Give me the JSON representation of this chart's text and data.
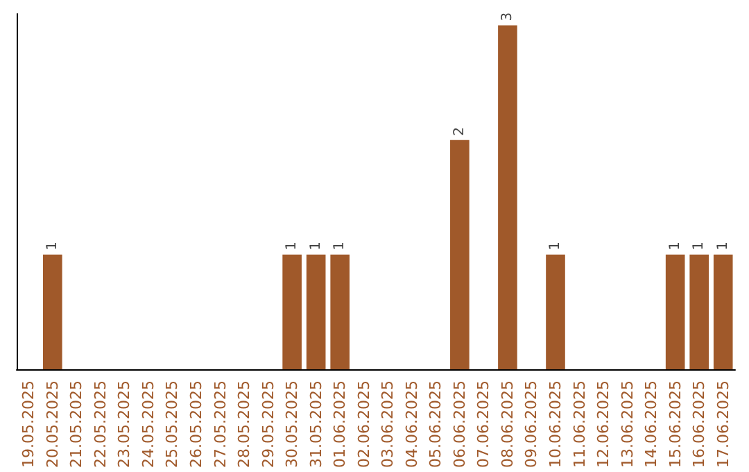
{
  "chart_data": {
    "type": "bar",
    "categories": [
      "19.05.2025",
      "20.05.2025",
      "21.05.2025",
      "22.05.2025",
      "23.05.2025",
      "24.05.2025",
      "25.05.2025",
      "26.05.2025",
      "27.05.2025",
      "28.05.2025",
      "29.05.2025",
      "30.05.2025",
      "31.05.2025",
      "01.06.2025",
      "02.06.2025",
      "03.06.2025",
      "04.06.2025",
      "05.06.2025",
      "06.06.2025",
      "07.06.2025",
      "08.06.2025",
      "09.06.2025",
      "10.06.2025",
      "11.06.2025",
      "12.06.2025",
      "13.06.2025",
      "14.06.2025",
      "15.06.2025",
      "16.06.2025",
      "17.06.2025"
    ],
    "values": [
      0,
      1,
      0,
      0,
      0,
      0,
      0,
      0,
      0,
      0,
      0,
      1,
      1,
      1,
      0,
      0,
      0,
      0,
      2,
      0,
      3,
      0,
      1,
      0,
      0,
      0,
      0,
      1,
      1,
      1
    ],
    "value_labels": [
      null,
      "1",
      null,
      null,
      null,
      null,
      null,
      null,
      null,
      null,
      null,
      "1",
      "1",
      "1",
      null,
      null,
      null,
      null,
      "2",
      null,
      "3",
      null,
      "1",
      null,
      null,
      null,
      null,
      "1",
      "1",
      "1"
    ],
    "color": "#a0592a",
    "ylim": [
      0,
      3.1
    ],
    "tick_labels": "x",
    "grid": false
  }
}
